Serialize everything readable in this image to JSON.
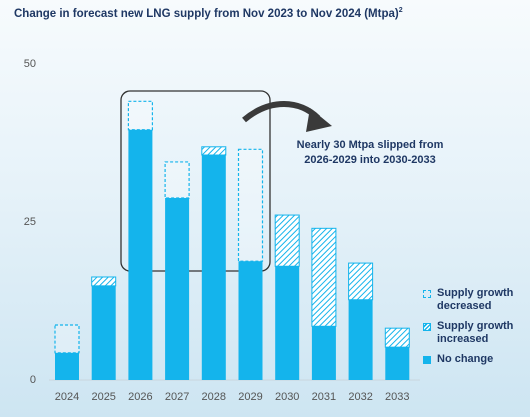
{
  "chart_data": {
    "type": "stacked-bar",
    "title": "Change in forecast new LNG supply from Nov 2023 to Nov 2024 (Mtpa)",
    "title_superscript": "2",
    "annotation": [
      "Nearly 30 Mtpa slipped from",
      "2026-2029 into 2030-2033"
    ],
    "categories": [
      "2024",
      "2025",
      "2026",
      "2027",
      "2028",
      "2029",
      "2030",
      "2031",
      "2032",
      "2033"
    ],
    "series": [
      {
        "name": "Supply growth decreased",
        "color": "#14b4ec",
        "style": "dashed",
        "values": [
          4.4,
          null,
          4.5,
          5.7,
          null,
          17.7,
          null,
          null,
          null,
          null
        ]
      },
      {
        "name": "Supply growth increased",
        "color": "#14b4ec",
        "style": "hatched",
        "values": [
          null,
          1.4,
          null,
          null,
          1.3,
          null,
          8.1,
          15.5,
          5.8,
          3.0
        ]
      },
      {
        "name": "No change",
        "color": "#14b4ec",
        "style": "solid",
        "values": [
          4.3,
          14.9,
          39.6,
          28.8,
          35.6,
          18.8,
          18.0,
          8.5,
          12.7,
          5.2
        ]
      }
    ],
    "ylim": [
      0,
      50
    ],
    "yticks": [
      0,
      25,
      50
    ],
    "grid": false
  }
}
